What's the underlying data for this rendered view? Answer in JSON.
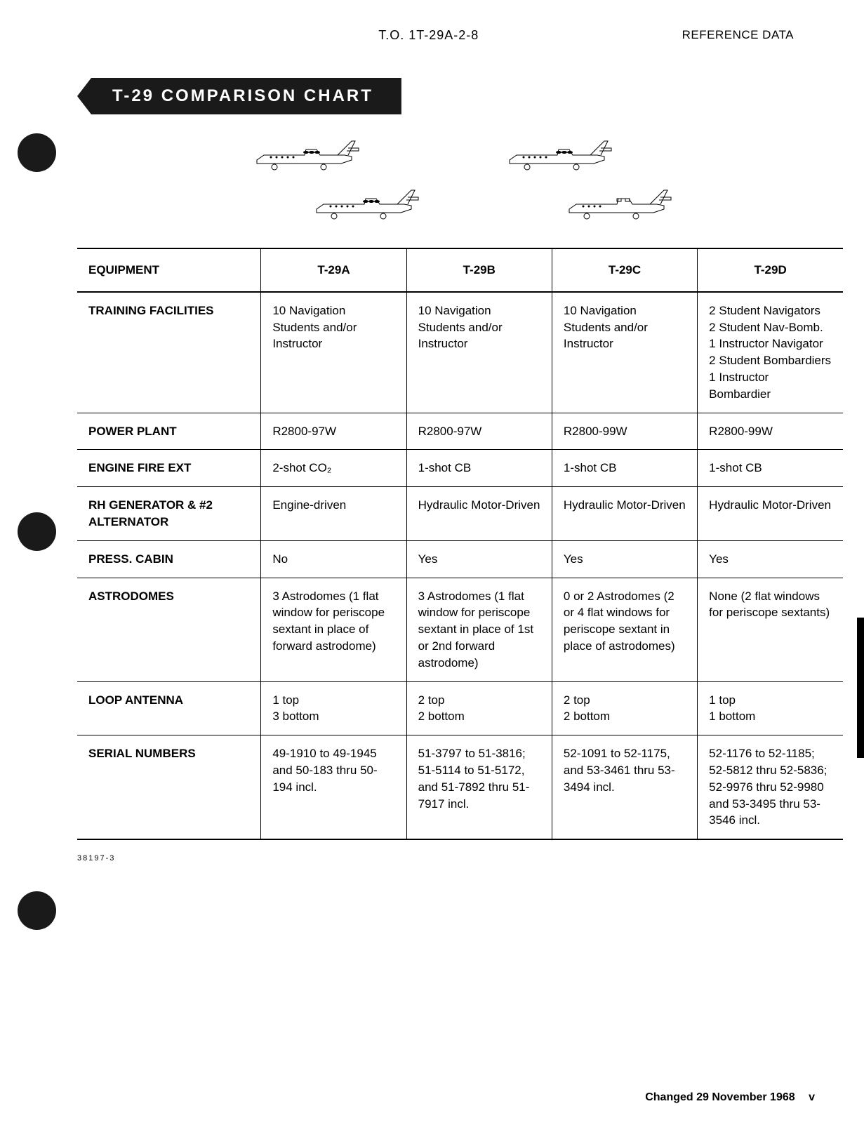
{
  "header": {
    "center": "T.O. 1T-29A-2-8",
    "right": "REFERENCE DATA"
  },
  "title": "T-29 COMPARISON CHART",
  "table": {
    "headers": [
      "EQUIPMENT",
      "T-29A",
      "T-29B",
      "T-29C",
      "T-29D"
    ],
    "rows": [
      {
        "label": "TRAINING FACILITIES",
        "a": "10 Navigation Students and/or Instructor",
        "b": "10 Navigation Students and/or Instructor",
        "c": "10 Navigation Students and/or Instructor",
        "d": "2 Student Navigators\n2 Student Nav-Bomb.\n1 Instructor Navigator\n2 Student Bombardiers\n1 Instructor Bombardier"
      },
      {
        "label": "POWER PLANT",
        "a": "R2800-97W",
        "b": "R2800-97W",
        "c": "R2800-99W",
        "d": "R2800-99W"
      },
      {
        "label": "ENGINE FIRE EXT",
        "a": "2-shot CO₂",
        "b": "1-shot CB",
        "c": "1-shot CB",
        "d": "1-shot CB"
      },
      {
        "label": "RH GENERATOR & #2 ALTERNATOR",
        "a": "Engine-driven",
        "b": "Hydraulic Motor-Driven",
        "c": "Hydraulic Motor-Driven",
        "d": "Hydraulic Motor-Driven"
      },
      {
        "label": "PRESS. CABIN",
        "a": "No",
        "b": "Yes",
        "c": "Yes",
        "d": "Yes"
      },
      {
        "label": "ASTRODOMES",
        "a": "3 Astrodomes (1 flat window for periscope sextant in place of forward astrodome)",
        "b": "3 Astrodomes (1 flat window for periscope sextant in place of 1st or 2nd forward astrodome)",
        "c": "0 or 2 Astrodomes (2 or 4 flat windows for periscope sextant in place of astrodomes)",
        "d": "None (2 flat windows for periscope sextants)"
      },
      {
        "label": "LOOP ANTENNA",
        "a": "1 top\n3 bottom",
        "b": "2 top\n2 bottom",
        "c": "2 top\n2 bottom",
        "d": "1 top\n1 bottom"
      },
      {
        "label": "SERIAL NUMBERS",
        "a": "49-1910 to 49-1945 and 50-183 thru 50-194 incl.",
        "b": "51-3797 to 51-3816; 51-5114 to 51-5172, and 51-7892 thru 51-7917 incl.",
        "c": "52-1091 to 52-1175, and 53-3461 thru 53-3494 incl.",
        "d": "52-1176 to 52-1185; 52-5812 thru 52-5836; 52-9976 thru 52-9980 and 53-3495 thru 53-3546 incl."
      }
    ]
  },
  "figure_number": "38197-3",
  "footer": {
    "changed": "Changed 29 November 1968",
    "page": "v"
  },
  "colors": {
    "text": "#000000",
    "banner_bg": "#1a1a1a",
    "banner_text": "#ffffff",
    "border": "#000000"
  }
}
